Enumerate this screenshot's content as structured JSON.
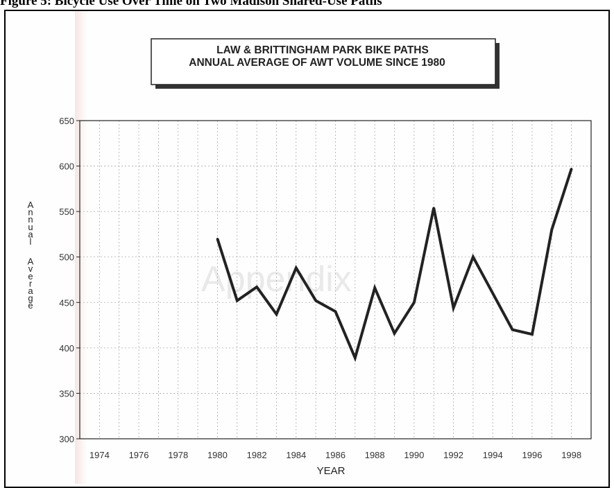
{
  "page": {
    "caption": "Figure 5: Bicycle Use Over Time on Two Madison Shared-Use Paths"
  },
  "chart_data": {
    "type": "line",
    "title": [
      "LAW & BRITTINGHAM PARK BIKE PATHS",
      "ANNUAL AVERAGE OF AWT VOLUME SINCE 1980"
    ],
    "xlabel": "YEAR",
    "ylabel": "Annual Average",
    "xlim": [
      1973,
      1999
    ],
    "ylim": [
      300,
      650
    ],
    "x_ticks": [
      1974,
      1976,
      1978,
      1980,
      1982,
      1984,
      1986,
      1988,
      1990,
      1992,
      1994,
      1996,
      1998
    ],
    "y_ticks": [
      300,
      350,
      400,
      450,
      500,
      550,
      600,
      650
    ],
    "grid": true,
    "line_color": "#222222",
    "series": [
      {
        "x": [
          1980,
          1981,
          1982,
          1983,
          1984,
          1985,
          1986,
          1987,
          1988,
          1989,
          1990,
          1991,
          1992,
          1993,
          1994,
          1995,
          1996,
          1997,
          1998
        ],
        "y": [
          520,
          452,
          467,
          437,
          488,
          452,
          440,
          389,
          466,
          416,
          450,
          554,
          444,
          500,
          460,
          420,
          415,
          530,
          597
        ]
      }
    ]
  }
}
